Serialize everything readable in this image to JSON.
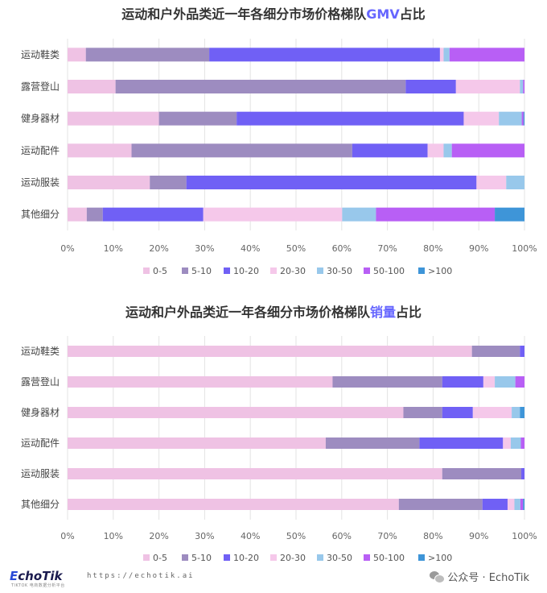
{
  "titles": {
    "chart1_prefix": "运动和户外品类近一年各细分市场价格梯队",
    "chart1_highlight": "GMV",
    "chart1_suffix": "占比",
    "chart2_prefix": "运动和户外品类近一年各细分市场价格梯队",
    "chart2_highlight": "销量",
    "chart2_suffix": "占比"
  },
  "colors": {
    "title_highlight": "#6666ff"
  },
  "footer": {
    "logo_text_e": "E",
    "logo_text_rest": "choTik",
    "logo_subtext": "TIKTOK 电商数据分析平台",
    "url": "https://echotik.ai",
    "wechat_label": "公众号 · EchoTik"
  },
  "chart_data": [
    {
      "type": "bar",
      "orientation": "horizontal",
      "stacked": true,
      "title": "运动和户外品类近一年各细分市场价格梯队GMV占比",
      "categories": [
        "运动鞋类",
        "露营登山",
        "健身器材",
        "运动配件",
        "运动服装",
        "其他细分"
      ],
      "series": [
        {
          "name": "0-5",
          "color": "#efc2e4",
          "values": [
            4,
            10.5,
            20,
            14,
            18,
            4.2
          ]
        },
        {
          "name": "5-10",
          "color": "#9d8cc0",
          "values": [
            27,
            63.5,
            17,
            48.3,
            8,
            3.5
          ]
        },
        {
          "name": "10-20",
          "color": "#7060f5",
          "values": [
            50.5,
            11,
            49.7,
            16.5,
            63.5,
            22
          ]
        },
        {
          "name": "20-30",
          "color": "#f5c8ea",
          "values": [
            0.8,
            14,
            7.7,
            3.5,
            6.5,
            30.4
          ]
        },
        {
          "name": "30-50",
          "color": "#98c8eb",
          "values": [
            1.3,
            0.7,
            5,
            1.8,
            4,
            7.4
          ]
        },
        {
          "name": "50-100",
          "color": "#b85ff5",
          "values": [
            16.4,
            0.3,
            0.4,
            15.9,
            0,
            26
          ]
        },
        {
          "name": ">100",
          "color": "#3e95d8",
          "values": [
            0,
            0,
            0.2,
            0,
            0,
            6.5
          ]
        }
      ],
      "xticks": [
        "0%",
        "10%",
        "20%",
        "30%",
        "40%",
        "50%",
        "60%",
        "70%",
        "80%",
        "90%",
        "100%"
      ],
      "xlim": [
        0,
        100
      ],
      "grid": true,
      "legend_position": "bottom"
    },
    {
      "type": "bar",
      "orientation": "horizontal",
      "stacked": true,
      "title": "运动和户外品类近一年各细分市场价格梯队销量占比",
      "categories": [
        "运动鞋类",
        "露营登山",
        "健身器材",
        "运动配件",
        "运动服装",
        "其他细分"
      ],
      "series": [
        {
          "name": "0-5",
          "color": "#efc2e4",
          "values": [
            88.5,
            58,
            73.5,
            56.5,
            82,
            72.5
          ]
        },
        {
          "name": "5-10",
          "color": "#9d8cc0",
          "values": [
            10.5,
            24,
            8.5,
            20.5,
            17.3,
            18.3
          ]
        },
        {
          "name": "10-20",
          "color": "#7060f5",
          "values": [
            1,
            9,
            6.7,
            18.3,
            0.7,
            5.5
          ]
        },
        {
          "name": "20-30",
          "color": "#f5c8ea",
          "values": [
            0,
            2.5,
            8.5,
            1.7,
            0,
            1.5
          ]
        },
        {
          "name": "30-50",
          "color": "#98c8eb",
          "values": [
            0,
            4.5,
            1.8,
            2.2,
            0,
            1.3
          ]
        },
        {
          "name": "50-100",
          "color": "#b85ff5",
          "values": [
            0,
            2,
            0,
            0.8,
            0,
            0.6
          ]
        },
        {
          "name": ">100",
          "color": "#3e95d8",
          "values": [
            0,
            0,
            1,
            0,
            0,
            0.3
          ]
        }
      ],
      "xticks": [
        "0%",
        "10%",
        "20%",
        "30%",
        "40%",
        "50%",
        "60%",
        "70%",
        "80%",
        "90%",
        "100%"
      ],
      "xlim": [
        0,
        100
      ],
      "grid": true,
      "legend_position": "bottom"
    }
  ]
}
